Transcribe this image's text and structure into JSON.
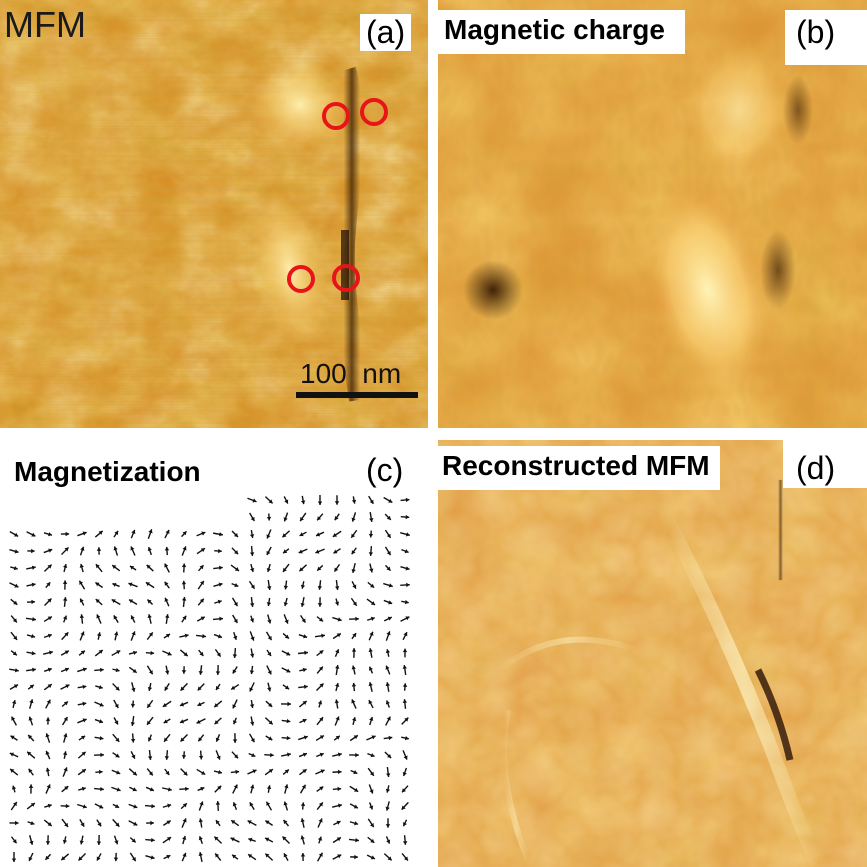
{
  "figure": {
    "panels": [
      {
        "id": "a",
        "letter": "(a)",
        "title": "MFM",
        "scale_bar_label": "100  nm"
      },
      {
        "id": "b",
        "letter": "(b)",
        "title": "Magnetic charge"
      },
      {
        "id": "c",
        "letter": "(c)",
        "title": "Magnetization"
      },
      {
        "id": "d",
        "letter": "(d)",
        "title": "Reconstructed MFM"
      }
    ],
    "colors": {
      "colormap_dark": "#3a1a00",
      "colormap_mid": "#d98a1c",
      "colormap_light": "#ffe79a",
      "marker": "#e8141a",
      "arrow": "#111111"
    },
    "markers_count_panel_a": 4
  }
}
